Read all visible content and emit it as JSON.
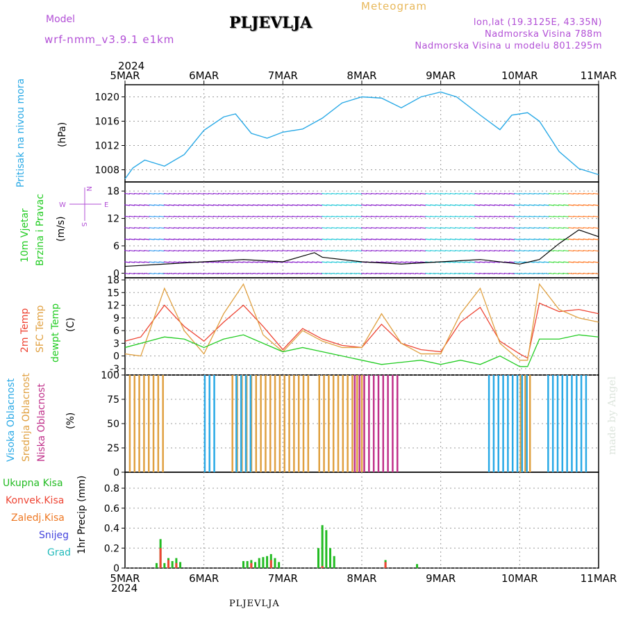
{
  "header": {
    "model_label": "Model",
    "model_name": "wrf-nmm_v3.9.1 e1km",
    "station": "PLJEVLJA",
    "product": "Meteogram",
    "lonlat": "lon,lat (19.3125E, 43.35N)",
    "elevation": "Nadmorska Visina 788m",
    "model_elevation": "Nadmorska Visina u modelu 801.295m"
  },
  "axis": {
    "year_top": "2024",
    "year_bottom": "2024",
    "dates": [
      "5MAR",
      "6MAR",
      "7MAR",
      "8MAR",
      "9MAR",
      "10MAR",
      "11MAR"
    ]
  },
  "footer": {
    "station": "PLJEVLJA",
    "credit": "made by Angel"
  },
  "colors": {
    "pressure": "#29a9e6",
    "wind_label": "#22cc22",
    "temp2m": "#ee4433",
    "sfc": "#e0a040",
    "dewpt": "#22cc22",
    "high_cloud": "#29a9e6",
    "mid_cloud": "#e0a040",
    "low_cloud": "#c0308a",
    "purple": "#b24fd6"
  },
  "panels": {
    "pressure": {
      "label": "Pritisak na nivou mora",
      "unit": "(hPa)"
    },
    "wind": {
      "label1": "10m Vjetar",
      "label2": "Brzina i Pravac",
      "unit": "(m/s)",
      "compass_w": "W",
      "compass_e": "E",
      "compass_n": "N",
      "compass_s": "S"
    },
    "temp": {
      "label1": "2m Temp",
      "label2": "SFC Temp",
      "label3": "dewpt Temp",
      "unit": "(C)"
    },
    "cloud": {
      "label1": "Visoka Oblacnost",
      "label2": "Srednja Oblacnost",
      "label3": "Niska Oblacnost",
      "unit": "(%)"
    },
    "precip": {
      "unit": "1hr Precip (mm)",
      "legend": [
        "Ukupna Kisa",
        "Konvek.Kisa",
        "Zaledj.Kisa",
        "Snijeg",
        "Grad"
      ],
      "legend_colors": [
        "#22bb22",
        "#ee4433",
        "#ee7722",
        "#4444dd",
        "#22bbbb"
      ]
    }
  },
  "chart_data": [
    {
      "type": "line",
      "name": "pressure",
      "x_unit": "days since 5MAR 00UTC",
      "xlim": [
        0,
        6
      ],
      "ylim": [
        1006,
        1022
      ],
      "yticks": [
        1008,
        1012,
        1016,
        1020
      ],
      "x": [
        0,
        0.1,
        0.25,
        0.5,
        0.75,
        1.0,
        1.25,
        1.4,
        1.6,
        1.8,
        2.0,
        2.25,
        2.5,
        2.75,
        3.0,
        3.25,
        3.5,
        3.75,
        4.0,
        4.2,
        4.5,
        4.75,
        4.9,
        5.1,
        5.25,
        5.5,
        5.75,
        6.0
      ],
      "y": [
        1006.5,
        1008.3,
        1009.6,
        1008.6,
        1010.5,
        1014.5,
        1016.7,
        1017.2,
        1014.0,
        1013.2,
        1014.2,
        1014.7,
        1016.5,
        1019.0,
        1020.0,
        1019.8,
        1018.2,
        1020.0,
        1020.8,
        1020.0,
        1017.0,
        1014.6,
        1017.0,
        1017.4,
        1016.0,
        1011.0,
        1008.2,
        1007.2
      ]
    },
    {
      "type": "line",
      "name": "wind",
      "ylim": [
        -1,
        20
      ],
      "yticks": [
        0,
        6,
        12,
        18
      ],
      "x": [
        0,
        0.5,
        1.0,
        1.5,
        2.0,
        2.4,
        2.5,
        3.0,
        3.5,
        4.0,
        4.5,
        5.0,
        5.25,
        5.5,
        5.75,
        6.0
      ],
      "y": [
        1.5,
        2.0,
        2.5,
        3.0,
        2.5,
        4.5,
        3.5,
        2.5,
        2.0,
        2.5,
        3.0,
        2.0,
        3.0,
        6.5,
        9.5,
        8.0
      ]
    },
    {
      "type": "line",
      "name": "temperature",
      "ylim": [
        -4.5,
        18.5
      ],
      "yticks": [
        -3,
        0,
        3,
        6,
        9,
        12,
        15,
        18
      ],
      "series": [
        {
          "name": "2m Temp",
          "x": [
            0,
            0.2,
            0.5,
            0.75,
            1.0,
            1.25,
            1.5,
            1.75,
            2.0,
            2.25,
            2.5,
            2.75,
            3.0,
            3.25,
            3.5,
            3.75,
            4.0,
            4.25,
            4.5,
            4.75,
            5.0,
            5.1,
            5.25,
            5.5,
            5.75,
            6.0
          ],
          "y": [
            3.5,
            4.5,
            12.0,
            7.0,
            3.5,
            8.0,
            12.0,
            7.0,
            1.5,
            6.5,
            4.0,
            2.5,
            2.0,
            7.5,
            3.0,
            1.5,
            1.0,
            8.0,
            11.5,
            3.5,
            0.5,
            -0.5,
            12.5,
            10.5,
            11.0,
            10.0
          ]
        },
        {
          "name": "SFC Temp",
          "x": [
            0,
            0.2,
            0.5,
            0.75,
            1.0,
            1.25,
            1.5,
            1.75,
            2.0,
            2.25,
            2.5,
            2.75,
            3.0,
            3.25,
            3.5,
            3.75,
            4.0,
            4.25,
            4.5,
            4.75,
            5.0,
            5.1,
            5.25,
            5.5,
            5.75,
            6.0
          ],
          "y": [
            0.5,
            0.0,
            16.0,
            6.0,
            0.5,
            10.0,
            17.0,
            5.0,
            1.0,
            6.0,
            3.5,
            2.0,
            2.0,
            10.0,
            3.0,
            0.5,
            0.5,
            10.0,
            16.0,
            3.0,
            -1.0,
            -1.0,
            17.0,
            11.0,
            9.0,
            8.0
          ]
        },
        {
          "name": "dewpt Temp",
          "x": [
            0,
            0.2,
            0.5,
            0.75,
            1.0,
            1.25,
            1.5,
            1.75,
            2.0,
            2.25,
            2.5,
            2.75,
            3.0,
            3.25,
            3.5,
            3.75,
            4.0,
            4.25,
            4.5,
            4.75,
            5.0,
            5.1,
            5.25,
            5.5,
            5.75,
            6.0
          ],
          "y": [
            2.0,
            3.0,
            4.5,
            4.0,
            2.0,
            4.0,
            5.0,
            3.0,
            1.0,
            2.0,
            1.0,
            0.0,
            -1.0,
            -2.0,
            -1.5,
            -1.0,
            -2.0,
            -1.0,
            -2.0,
            0.0,
            -2.5,
            -2.5,
            4.0,
            4.0,
            5.0,
            4.5
          ]
        }
      ]
    },
    {
      "type": "bar",
      "name": "cloud",
      "ylim": [
        0,
        100
      ],
      "yticks": [
        0,
        25,
        50,
        75,
        100
      ],
      "bar_groups": [
        {
          "name": "Srednja Oblacnost",
          "ranges": [
            [
              0.05,
              0.5
            ],
            [
              1.35,
              2.35
            ],
            [
              2.45,
              3.05
            ],
            [
              5.0,
              5.15
            ]
          ],
          "value": 100
        },
        {
          "name": "Visoka Oblacnost",
          "ranges": [
            [
              1.0,
              1.15
            ],
            [
              1.4,
              1.6
            ],
            [
              4.6,
              5.1
            ],
            [
              5.35,
              5.85
            ]
          ],
          "value": 100
        },
        {
          "name": "Niska Oblacnost",
          "ranges": [
            [
              2.9,
              3.5
            ]
          ],
          "value": 100
        }
      ]
    },
    {
      "type": "bar",
      "name": "precipitation",
      "ylim": [
        0,
        0.96
      ],
      "yticks": [
        0,
        0.2,
        0.4,
        0.6,
        0.8
      ],
      "series": [
        {
          "name": "Ukupna Kisa",
          "x": [
            0.4,
            0.45,
            0.5,
            0.55,
            0.6,
            0.65,
            0.7,
            1.5,
            1.55,
            1.6,
            1.65,
            1.7,
            1.75,
            1.8,
            1.85,
            1.9,
            1.95,
            2.45,
            2.5,
            2.55,
            2.6,
            2.65,
            3.3,
            3.7
          ],
          "y": [
            0.05,
            0.29,
            0.05,
            0.1,
            0.07,
            0.1,
            0.06,
            0.07,
            0.07,
            0.08,
            0.06,
            0.1,
            0.11,
            0.12,
            0.14,
            0.1,
            0.06,
            0.2,
            0.43,
            0.38,
            0.2,
            0.12,
            0.08,
            0.04
          ]
        },
        {
          "name": "Konvek.Kisa",
          "x": [
            0.45,
            0.55,
            0.65,
            1.6,
            1.85,
            2.5,
            3.3
          ],
          "y": [
            0.2,
            0.08,
            0.05,
            0.05,
            0.08,
            0.02,
            0.06
          ]
        }
      ]
    }
  ]
}
